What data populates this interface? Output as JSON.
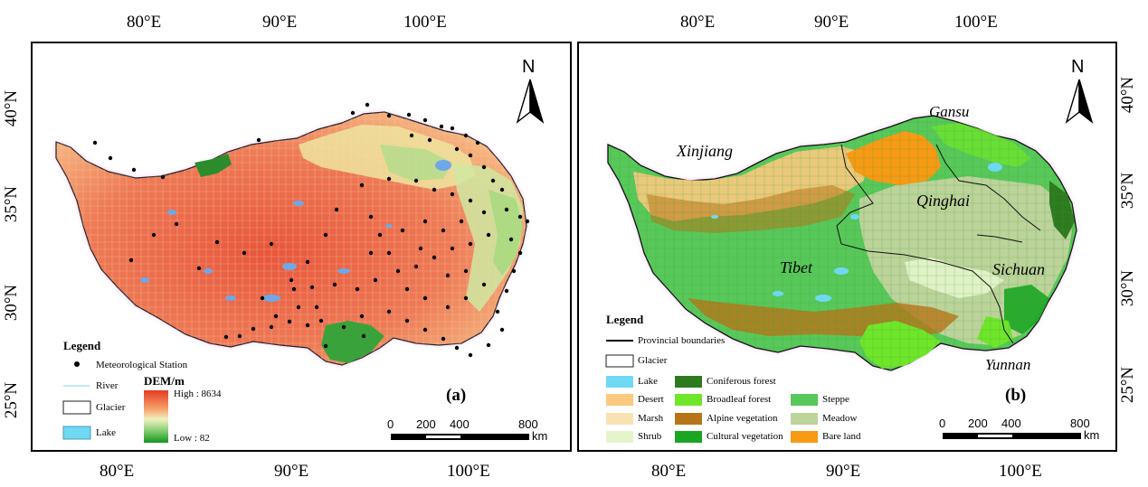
{
  "panel_a": {
    "top_ticks": [
      "80°E",
      "90°E",
      "100°E"
    ],
    "bottom_ticks": [
      "80°E",
      "90°E",
      "100°E"
    ],
    "left_ticks": [
      "40°N",
      "35°N",
      "30°N",
      "25°N"
    ],
    "north_label": "N",
    "panel_label": "(a)",
    "legend": {
      "title": "Legend",
      "station": "Meteorological Station",
      "river": "River",
      "glacier": "Glacier",
      "lake": "Lake",
      "dem_title": "DEM/m",
      "dem_high": "High : 8634",
      "dem_low": "Low : 82"
    },
    "scale": {
      "labels": [
        "0",
        "200",
        "400",
        "800"
      ],
      "unit": "km"
    }
  },
  "panel_b": {
    "top_ticks": [
      "80°E",
      "90°E",
      "100°E"
    ],
    "bottom_ticks": [
      "80°E",
      "90°E",
      "100°E"
    ],
    "right_ticks": [
      "40°N",
      "35°N",
      "30°N",
      "25°N"
    ],
    "north_label": "N",
    "panel_label": "(b)",
    "provinces": [
      "Xinjiang",
      "Gansu",
      "Qinghai",
      "Tibet",
      "Sichuan",
      "Yunnan"
    ],
    "legend": {
      "title": "Legend",
      "boundaries": "Provincial boundaries",
      "glacier": "Glacier",
      "lake": "Lake",
      "coniferous": "Coniferous forest",
      "desert": "Desert",
      "broadleaf": "Broadleaf forest",
      "steppe": "Steppe",
      "marsh": "Marsh",
      "alpine": "Alpine vegetation",
      "meadow": "Meadow",
      "shrub": "Shrub",
      "cultural": "Cultural vegetation",
      "bare": "Bare land"
    },
    "scale": {
      "labels": [
        "0",
        "200",
        "400",
        "800"
      ],
      "unit": "km"
    }
  },
  "colors": {
    "lake": "#6fd8f2",
    "coniferous": "#2e7a1e",
    "desert": "#fbc97e",
    "broadleaf": "#6fe62a",
    "steppe": "#58c85a",
    "marsh": "#f8e2b2",
    "alpine": "#b87418",
    "meadow": "#bcd39a",
    "shrub": "#e4f5cc",
    "cultural": "#1aa622",
    "bare": "#f79a14"
  }
}
